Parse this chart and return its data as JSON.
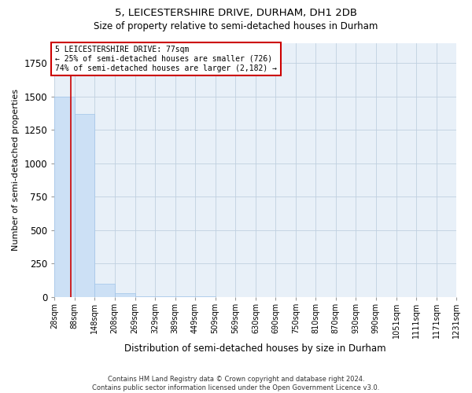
{
  "title": "5, LEICESTERSHIRE DRIVE, DURHAM, DH1 2DB",
  "subtitle": "Size of property relative to semi-detached houses in Durham",
  "xlabel": "Distribution of semi-detached houses by size in Durham",
  "ylabel": "Number of semi-detached properties",
  "footer": "Contains HM Land Registry data © Crown copyright and database right 2024.\nContains public sector information licensed under the Open Government Licence v3.0.",
  "bin_edges": [
    28,
    88,
    148,
    208,
    269,
    329,
    389,
    449,
    509,
    569,
    630,
    690,
    750,
    810,
    870,
    930,
    990,
    1051,
    1111,
    1171,
    1231
  ],
  "bar_heights": [
    1500,
    1370,
    100,
    30,
    5,
    3,
    2,
    2,
    1,
    1,
    1,
    1,
    1,
    1,
    1,
    1,
    1,
    1,
    1,
    1
  ],
  "bar_color": "#cce0f5",
  "bar_edge_color": "#a0c4e8",
  "property_value": 77,
  "property_line_color": "#cc0000",
  "annotation_line1": "5 LEICESTERSHIRE DRIVE: 77sqm",
  "annotation_line2": "← 25% of semi-detached houses are smaller (726)",
  "annotation_line3": "74% of semi-detached houses are larger (2,182) →",
  "annotation_box_color": "#ffffff",
  "annotation_box_edge_color": "#cc0000",
  "ylim": [
    0,
    1900
  ],
  "xlim": [
    28,
    1231
  ],
  "background_color": "#ffffff",
  "plot_bg_color": "#e8f0f8",
  "grid_color": "#c0d0e0",
  "tick_label_fontsize": 7.0,
  "title_fontsize": 9.5,
  "subtitle_fontsize": 8.5,
  "ylabel_fontsize": 8.0,
  "xlabel_fontsize": 8.5,
  "footer_fontsize": 6.0
}
